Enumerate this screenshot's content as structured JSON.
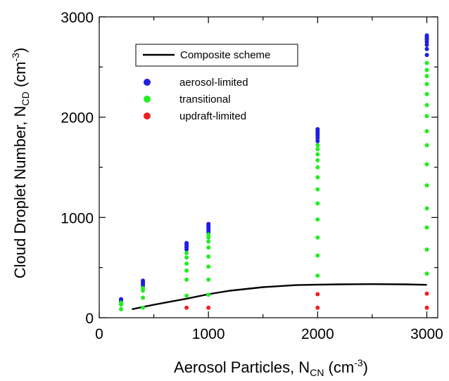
{
  "chart_data": {
    "type": "scatter",
    "xlabel": "Aerosol Particles, N",
    "xlabel_sub": "CN",
    "xlabel_unit_open": " (cm",
    "xlabel_unit_sup": "-3",
    "xlabel_unit_close": ")",
    "ylabel": "Cloud Droplet Number, N",
    "ylabel_sub": "CD",
    "ylabel_unit_open": " (cm",
    "ylabel_unit_sup": "-3",
    "ylabel_unit_close": ")",
    "xlim": [
      0,
      3100
    ],
    "ylim": [
      0,
      3000
    ],
    "xticks": [
      0,
      1000,
      2000,
      3000
    ],
    "xtick_labels": [
      "0",
      "1000",
      "2000",
      "3000"
    ],
    "yticks": [
      0,
      1000,
      2000,
      3000
    ],
    "ytick_labels": [
      "0",
      "1000",
      "2000",
      "3000"
    ],
    "x_minor_ticks": [
      500,
      1500,
      2500
    ],
    "y_minor_ticks": [
      500,
      1500,
      2500
    ],
    "legend_placement": "top-left",
    "colors": {
      "aerosol-limited": "#1f1fe0",
      "transitional": "#22ee22",
      "updraft-limited": "#ee2020",
      "composite": "#000000"
    },
    "series": [
      {
        "name": "Composite scheme",
        "kind": "line",
        "color_key": "composite",
        "x": [
          300,
          500,
          800,
          1000,
          1200,
          1500,
          1800,
          2000,
          2200,
          2500,
          2800,
          3000
        ],
        "y": [
          85,
          130,
          190,
          235,
          270,
          305,
          325,
          330,
          333,
          335,
          333,
          328
        ]
      },
      {
        "name": "aerosol-limited",
        "kind": "points",
        "color_key": "aerosol-limited",
        "points": [
          [
            200,
            160
          ],
          [
            200,
            175
          ],
          [
            200,
            185
          ],
          [
            400,
            320
          ],
          [
            400,
            340
          ],
          [
            400,
            355
          ],
          [
            400,
            370
          ],
          [
            800,
            680
          ],
          [
            800,
            700
          ],
          [
            800,
            715
          ],
          [
            800,
            730
          ],
          [
            800,
            745
          ],
          [
            1000,
            850
          ],
          [
            1000,
            870
          ],
          [
            1000,
            890
          ],
          [
            1000,
            905
          ],
          [
            1000,
            920
          ],
          [
            1000,
            935
          ],
          [
            2000,
            1760
          ],
          [
            2000,
            1790
          ],
          [
            2000,
            1815
          ],
          [
            2000,
            1835
          ],
          [
            2000,
            1850
          ],
          [
            2000,
            1865
          ],
          [
            2000,
            1880
          ],
          [
            3000,
            2620
          ],
          [
            3000,
            2680
          ],
          [
            3000,
            2720
          ],
          [
            3000,
            2750
          ],
          [
            3000,
            2770
          ],
          [
            3000,
            2785
          ],
          [
            3000,
            2800
          ],
          [
            3000,
            2815
          ]
        ]
      },
      {
        "name": "transitional",
        "kind": "points",
        "color_key": "transitional",
        "points": [
          [
            200,
            85
          ],
          [
            200,
            130
          ],
          [
            200,
            150
          ],
          [
            400,
            100
          ],
          [
            400,
            200
          ],
          [
            400,
            270
          ],
          [
            400,
            295
          ],
          [
            800,
            220
          ],
          [
            800,
            380
          ],
          [
            800,
            470
          ],
          [
            800,
            540
          ],
          [
            800,
            600
          ],
          [
            800,
            645
          ],
          [
            1000,
            230
          ],
          [
            1000,
            380
          ],
          [
            1000,
            510
          ],
          [
            1000,
            610
          ],
          [
            1000,
            700
          ],
          [
            1000,
            760
          ],
          [
            1000,
            800
          ],
          [
            1000,
            830
          ],
          [
            2000,
            420
          ],
          [
            2000,
            620
          ],
          [
            2000,
            800
          ],
          [
            2000,
            980
          ],
          [
            2000,
            1140
          ],
          [
            2000,
            1280
          ],
          [
            2000,
            1400
          ],
          [
            2000,
            1500
          ],
          [
            2000,
            1570
          ],
          [
            2000,
            1630
          ],
          [
            2000,
            1680
          ],
          [
            2000,
            1720
          ],
          [
            3000,
            440
          ],
          [
            3000,
            680
          ],
          [
            3000,
            900
          ],
          [
            3000,
            1090
          ],
          [
            3000,
            1320
          ],
          [
            3000,
            1530
          ],
          [
            3000,
            1720
          ],
          [
            3000,
            1860
          ],
          [
            3000,
            2010
          ],
          [
            3000,
            2120
          ],
          [
            3000,
            2230
          ],
          [
            3000,
            2330
          ],
          [
            3000,
            2410
          ],
          [
            3000,
            2470
          ],
          [
            3000,
            2540
          ]
        ]
      },
      {
        "name": "updraft-limited",
        "kind": "points",
        "color_key": "updraft-limited",
        "points": [
          [
            800,
            100
          ],
          [
            1000,
            100
          ],
          [
            2000,
            100
          ],
          [
            2000,
            235
          ],
          [
            3000,
            100
          ],
          [
            3000,
            240
          ]
        ]
      }
    ],
    "legend": {
      "line_label": "Composite scheme",
      "point_labels": [
        "aerosol-limited",
        "transitional",
        "updraft-limited"
      ]
    }
  }
}
